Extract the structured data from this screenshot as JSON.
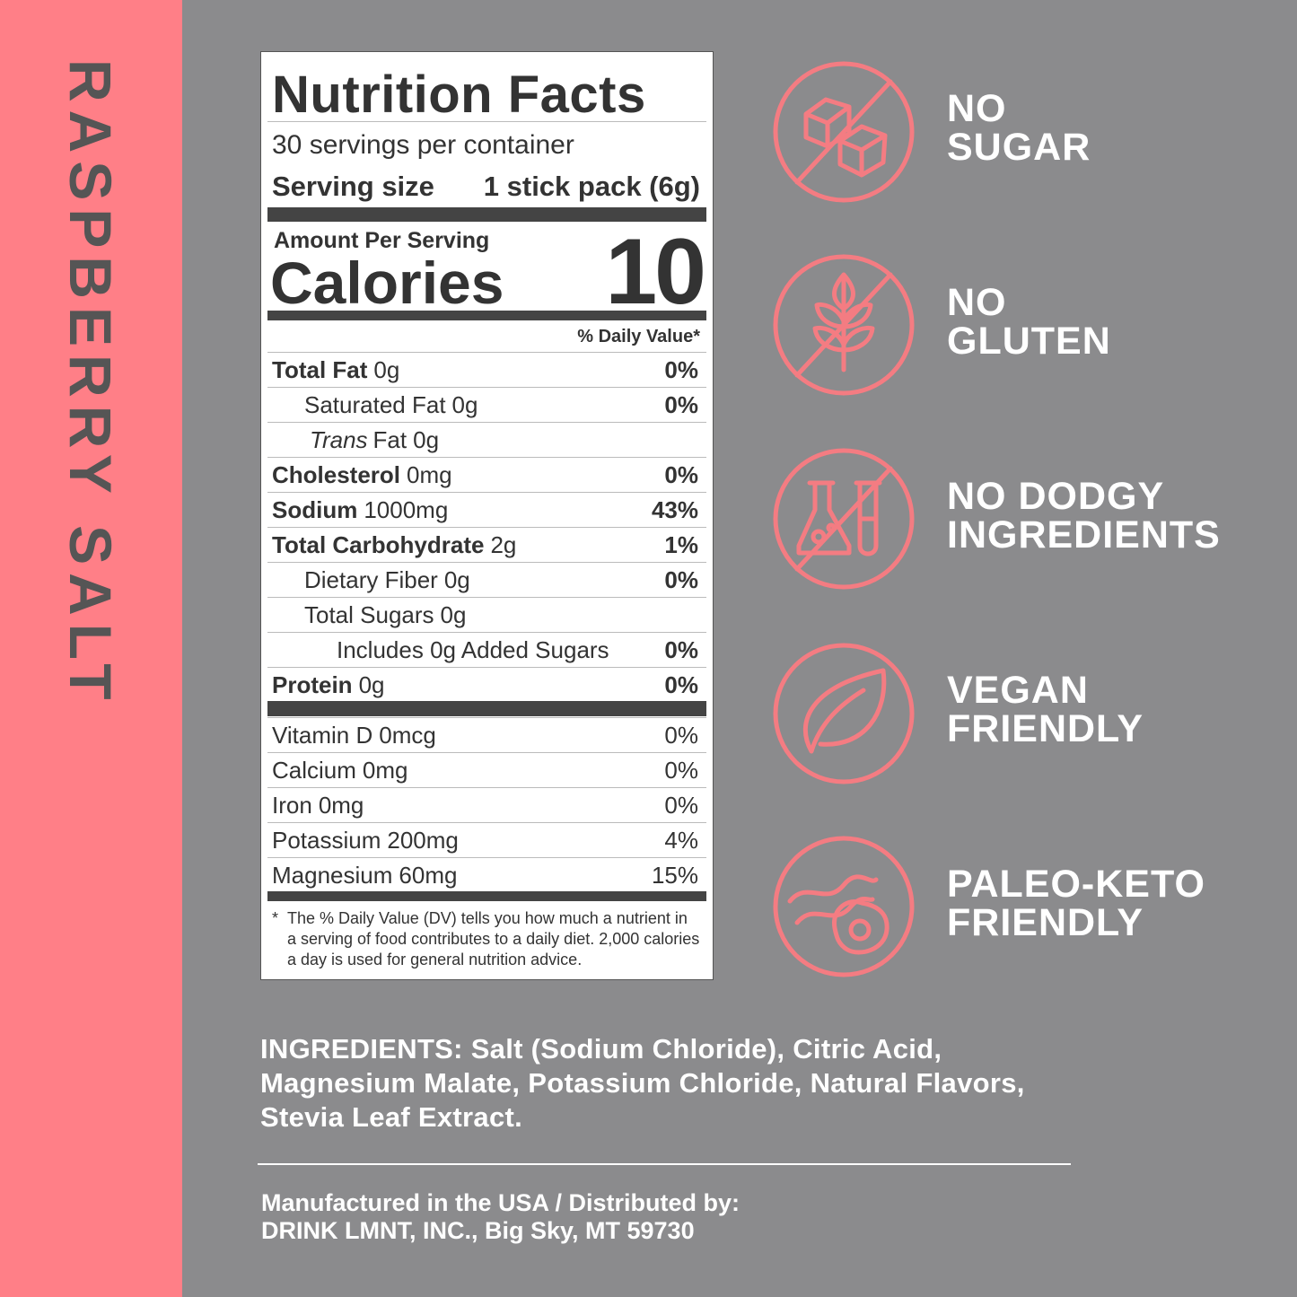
{
  "side_label": "RASPBERRY SALT",
  "nutrition": {
    "title": "Nutrition Facts",
    "servings": "30 servings per container",
    "serving_size_label": "Serving size",
    "serving_size_value": "1 stick pack (6g)",
    "amount_per_serving": "Amount Per Serving",
    "calories_label": "Calories",
    "calories_value": "10",
    "dv_header": "% Daily Value*",
    "nutrients": [
      {
        "name": "Total Fat",
        "amount": "0g",
        "dv": "0%"
      },
      {
        "name": "Saturated Fat",
        "amount": "0g",
        "dv": "0%"
      },
      {
        "name_italic": "Trans",
        "name": "Fat",
        "amount": "0g"
      },
      {
        "name": "Cholesterol",
        "amount": "0mg",
        "dv": "0%"
      },
      {
        "name": "Sodium",
        "amount": "1000mg",
        "dv": "43%"
      },
      {
        "name": "Total Carbohydrate",
        "amount": "2g",
        "dv": "1%"
      },
      {
        "name": "Dietary Fiber",
        "amount": "0g",
        "dv": "0%"
      },
      {
        "name": "Total Sugars",
        "amount": "0g"
      },
      {
        "name": "Includes 0g Added Sugars",
        "dv": "0%"
      },
      {
        "name": "Protein",
        "amount": "0g",
        "dv": "0%"
      }
    ],
    "vitamins": [
      {
        "name": "Vitamin D",
        "amount": "0mcg",
        "dv": "0%"
      },
      {
        "name": "Calcium",
        "amount": "0mg",
        "dv": "0%"
      },
      {
        "name": "Iron",
        "amount": "0mg",
        "dv": "0%"
      },
      {
        "name": "Potassium",
        "amount": "200mg",
        "dv": "4%"
      },
      {
        "name": "Magnesium",
        "amount": "60mg",
        "dv": "15%"
      }
    ],
    "footnote_mark": "*",
    "footnote": "The % Daily Value (DV) tells you how much a nutrient in a serving of food contributes to a daily diet. 2,000 calories a day is used for general nutrition advice."
  },
  "claims": [
    {
      "line1": "NO",
      "line2": "SUGAR"
    },
    {
      "line1": "NO",
      "line2": "GLUTEN"
    },
    {
      "line1": "NO DODGY",
      "line2": "INGREDIENTS"
    },
    {
      "line1": "VEGAN",
      "line2": "FRIENDLY"
    },
    {
      "line1": "PALEO-KETO",
      "line2": "FRIENDLY"
    }
  ],
  "ingredients": {
    "label": "INGREDIENTS:",
    "text": "Salt (Sodium Chloride), Citric Acid, Magnesium Malate, Potassium Chloride, Natural Flavors, Stevia Leaf Extract."
  },
  "manufacturer": [
    "Manufactured in the USA / Distributed by:",
    "DRINK LMNT, INC., Big Sky, MT 59730"
  ]
}
